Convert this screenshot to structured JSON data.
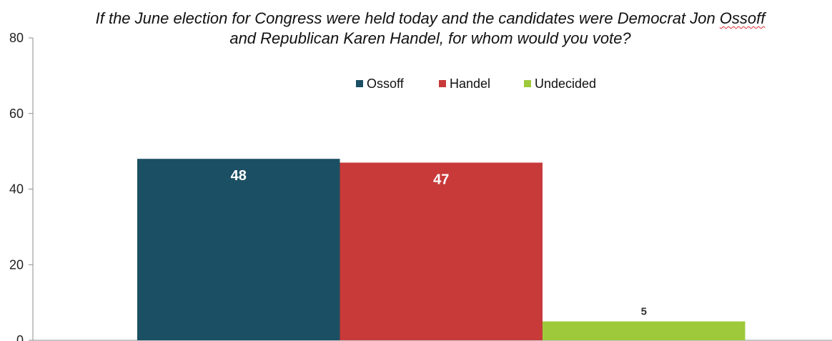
{
  "chart_data": {
    "type": "bar",
    "title_parts": {
      "line1_before": "If the June election for Congress were held today and the candidates were Democrat Jon ",
      "line1_flagged": "Ossoff",
      "line2": "and Republican Karen Handel, for whom would you vote?"
    },
    "series": [
      {
        "name": "Ossoff",
        "value": 48,
        "label": "48",
        "color": "#1b4f63",
        "label_color": "#ffffff"
      },
      {
        "name": "Handel",
        "value": 47,
        "label": "47",
        "color": "#c83a3a",
        "label_color": "#ffffff"
      },
      {
        "name": "Undecided",
        "value": 5,
        "label": "5",
        "color": "#9dc93b",
        "label_color": "#333333"
      }
    ],
    "yticks": [
      {
        "value": 0,
        "label": "0"
      },
      {
        "value": 20,
        "label": "20"
      },
      {
        "value": 40,
        "label": "40"
      },
      {
        "value": 60,
        "label": "60"
      },
      {
        "value": 80,
        "label": "80"
      }
    ],
    "ylim": [
      0,
      80
    ],
    "grid": false,
    "legend_position": "top-center",
    "xlabel": "",
    "ylabel": ""
  }
}
